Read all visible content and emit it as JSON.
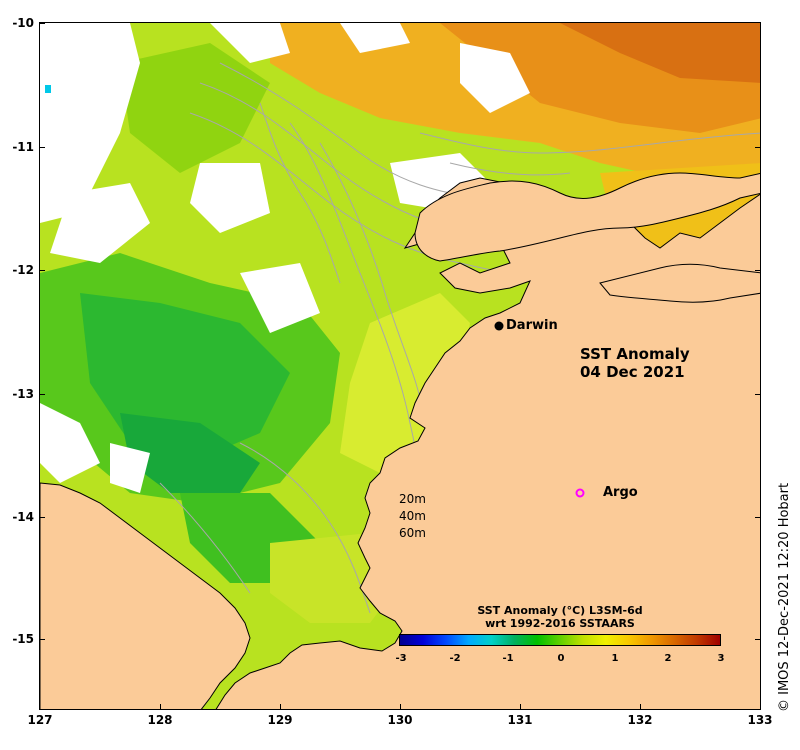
{
  "map": {
    "title_line1": "SST Anomaly",
    "title_line2": "04 Dec 2021",
    "y_ticks": [
      "-10",
      "-11",
      "-12",
      "-13",
      "-14",
      "-15"
    ],
    "x_ticks": [
      "127",
      "128",
      "129",
      "130",
      "131",
      "132",
      "133"
    ],
    "places": [
      {
        "name": "Darwin",
        "marker": "filled-dot",
        "color": "#000000"
      },
      {
        "name": "Argo",
        "marker": "open-circle",
        "color": "#ff00ff"
      }
    ],
    "depth_contours": [
      "20m",
      "40m",
      "60m"
    ],
    "colorbar": {
      "title_line1": "SST Anomaly (°C) L3SM-6d",
      "title_line2": "wrt 1992-2016 SSTAARS",
      "ticks": [
        "-3",
        "-2",
        "-1",
        "0",
        "1",
        "2",
        "3"
      ]
    },
    "credit": "© IMOS 12-Dec-2021 12:20 Hobart"
  },
  "colors": {
    "land": "#fbcb98",
    "coast": "#000000",
    "contour": "#a8a8a8",
    "anomaly_scale": [
      "#00008f",
      "#0000d8",
      "#0048ff",
      "#00a8ff",
      "#00d0c8",
      "#00b060",
      "#00c000",
      "#60d000",
      "#c0e000",
      "#f0f000",
      "#f8c800",
      "#f09800",
      "#d86800",
      "#c03800",
      "#a00000"
    ]
  }
}
